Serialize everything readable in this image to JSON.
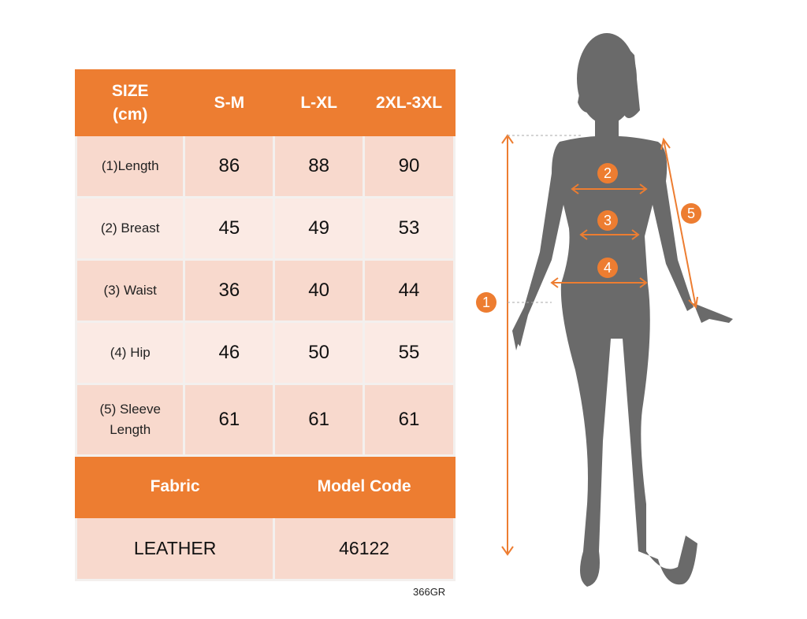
{
  "header": {
    "size_label": "SIZE\n(cm)",
    "size_line1": "SIZE",
    "size_line2": "(cm)",
    "columns": [
      "S-M",
      "L-XL",
      "2XL-3XL"
    ]
  },
  "rows": [
    {
      "label": "(1)Length",
      "values": [
        "86",
        "88",
        "90"
      ]
    },
    {
      "label": "(2) Breast",
      "values": [
        "45",
        "49",
        "53"
      ]
    },
    {
      "label": "(3) Waist",
      "values": [
        "36",
        "40",
        "44"
      ]
    },
    {
      "label": "(4) Hip",
      "values": [
        "46",
        "50",
        "55"
      ]
    },
    {
      "label": "(5) Sleeve Length",
      "values": [
        "61",
        "61",
        "61"
      ]
    }
  ],
  "footer": {
    "fabric_label": "Fabric",
    "model_code_label": "Model Code",
    "fabric_value": "LEATHER",
    "model_code_value": "46122"
  },
  "product_code": "366GR",
  "markers": [
    "1",
    "2",
    "3",
    "4",
    "5"
  ],
  "colors": {
    "accent": "#ED7D31",
    "row_dark": "#F8D9CD",
    "row_light": "#FBEAE4",
    "silhouette": "#6a6a6a"
  }
}
